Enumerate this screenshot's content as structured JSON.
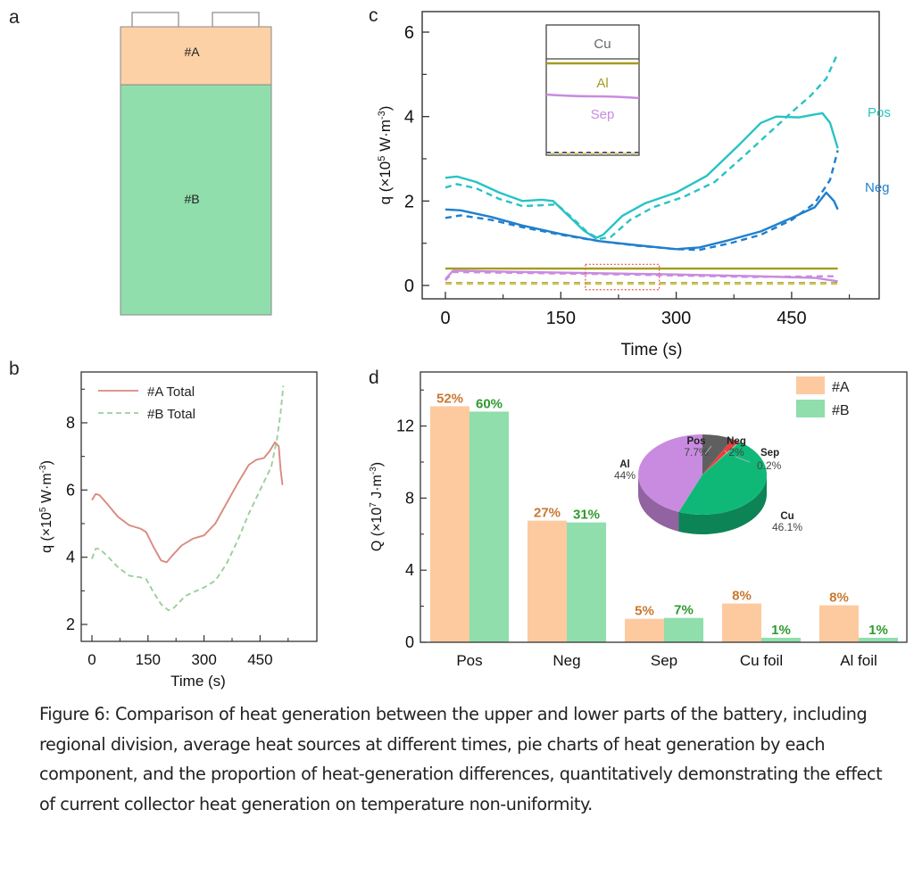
{
  "figure": {
    "caption": "Figure 6: Comparison of heat generation between the upper and lower parts of the battery, including regional division, average heat sources at different times, pie charts of heat generation by each component, and the proportion of heat-generation differences, quantitatively demonstrating the effect of current collector heat generation on temperature non-uniformity."
  },
  "panels": {
    "a": {
      "label": "a",
      "regions": [
        {
          "name": "#A",
          "color": "#fdd1a6"
        },
        {
          "name": "#B",
          "color": "#8fdeac"
        }
      ]
    }
  },
  "chart_data": [
    {
      "panel": "c",
      "type": "line",
      "title": "",
      "xlabel": "Time (s)",
      "ylabel": "q (×10⁵ W·m⁻³)",
      "ylabel_parts": {
        "pre": "q (×10",
        "sup1": "5",
        "mid": " W·m",
        "sup2": "-3",
        "post": ")"
      },
      "xlim": [
        -20,
        565
      ],
      "ylim": [
        -0.3,
        6.6
      ],
      "xticks": [
        0,
        150,
        300,
        450
      ],
      "yticks": [
        0,
        2,
        4,
        6
      ],
      "line_labels": [
        {
          "text": "Pos",
          "color": "#27c3c5"
        },
        {
          "text": "Neg",
          "color": "#1f7fce"
        }
      ],
      "series": [
        {
          "name": "Pos #A",
          "style": "solid",
          "color": "#27c3c5",
          "x": [
            0,
            15,
            40,
            70,
            100,
            125,
            140,
            160,
            180,
            195,
            205,
            230,
            260,
            300,
            340,
            380,
            410,
            430,
            460,
            480,
            490,
            500,
            510
          ],
          "y": [
            2.55,
            2.58,
            2.45,
            2.2,
            2.0,
            2.03,
            2.0,
            1.65,
            1.3,
            1.12,
            1.2,
            1.65,
            1.95,
            2.2,
            2.6,
            3.3,
            3.85,
            4.0,
            3.98,
            4.05,
            4.08,
            3.85,
            3.25
          ]
        },
        {
          "name": "Pos #B",
          "style": "dashed",
          "color": "#27c3c5",
          "x": [
            0,
            15,
            40,
            70,
            100,
            125,
            145,
            165,
            185,
            200,
            215,
            240,
            270,
            310,
            350,
            390,
            420,
            450,
            475,
            495,
            510
          ],
          "y": [
            2.32,
            2.4,
            2.3,
            2.05,
            1.88,
            1.9,
            1.92,
            1.6,
            1.25,
            1.1,
            1.15,
            1.55,
            1.85,
            2.1,
            2.45,
            3.1,
            3.6,
            4.1,
            4.5,
            4.9,
            5.5
          ]
        },
        {
          "name": "Neg #A",
          "style": "solid",
          "color": "#1f7fce",
          "x": [
            0,
            20,
            60,
            100,
            150,
            200,
            250,
            300,
            330,
            370,
            410,
            450,
            480,
            495,
            505,
            510
          ],
          "y": [
            1.8,
            1.78,
            1.62,
            1.42,
            1.22,
            1.05,
            0.95,
            0.86,
            0.9,
            1.08,
            1.28,
            1.6,
            1.85,
            2.2,
            2.0,
            1.8
          ]
        },
        {
          "name": "Neg #B",
          "style": "dashed",
          "color": "#1f7fce",
          "x": [
            0,
            20,
            60,
            100,
            150,
            200,
            250,
            300,
            330,
            370,
            410,
            450,
            480,
            500,
            510
          ],
          "y": [
            1.6,
            1.66,
            1.55,
            1.38,
            1.2,
            1.05,
            0.94,
            0.86,
            0.84,
            1.0,
            1.2,
            1.55,
            1.95,
            2.5,
            3.2
          ]
        },
        {
          "name": "Al #A",
          "style": "solid",
          "color": "#a59b1e",
          "x": [
            0,
            510
          ],
          "y": [
            0.4,
            0.4
          ]
        },
        {
          "name": "Sep #A",
          "style": "solid",
          "color": "#c98be0",
          "x": [
            0,
            10,
            100,
            200,
            300,
            400,
            480,
            510
          ],
          "y": [
            0.15,
            0.35,
            0.32,
            0.29,
            0.26,
            0.22,
            0.18,
            0.1
          ]
        },
        {
          "name": "Sep #B",
          "style": "dashed",
          "color": "#c98be0",
          "x": [
            0,
            10,
            200,
            400,
            510
          ],
          "y": [
            0.12,
            0.32,
            0.27,
            0.2,
            0.22
          ]
        },
        {
          "name": "Cu #A",
          "style": "dashed",
          "color": "#5b5b6b",
          "x": [
            0,
            510
          ],
          "y": [
            0.05,
            0.05
          ]
        },
        {
          "name": "Al #B",
          "style": "dashed",
          "color": "#cfc832",
          "x": [
            0,
            510
          ],
          "y": [
            0.04,
            0.04
          ]
        }
      ],
      "highlight_box": {
        "x": [
          182,
          278
        ],
        "y": [
          -0.1,
          0.5
        ],
        "color": "#e05a4a"
      },
      "inset": {
        "labels": [
          {
            "text": "Cu",
            "color": "#666666"
          },
          {
            "text": "Al",
            "color": "#a59b1e"
          },
          {
            "text": "Sep",
            "color": "#c98be0"
          }
        ]
      }
    },
    {
      "panel": "b",
      "type": "line",
      "title": "",
      "xlabel": "Time (s)",
      "ylabel": "q (×10⁵ W·m⁻³)",
      "ylabel_parts": {
        "pre": "q (×10",
        "sup1": "5",
        "mid": " W·m",
        "sup2": "-3",
        "post": ")"
      },
      "xlim": [
        -30,
        600
      ],
      "ylim": [
        1.5,
        9.5
      ],
      "xticks": [
        0,
        150,
        300,
        450
      ],
      "yticks": [
        2,
        4,
        6,
        8
      ],
      "legend": {
        "placement": "top-left"
      },
      "series": [
        {
          "name": "#A Total",
          "style": "solid",
          "color": "#d98a80",
          "x": [
            0,
            10,
            20,
            40,
            70,
            100,
            130,
            145,
            165,
            185,
            200,
            215,
            240,
            270,
            300,
            330,
            360,
            390,
            420,
            440,
            460,
            475,
            490,
            500,
            505,
            510
          ],
          "y": [
            5.7,
            5.88,
            5.85,
            5.6,
            5.2,
            4.95,
            4.85,
            4.75,
            4.3,
            3.9,
            3.85,
            4.05,
            4.35,
            4.55,
            4.65,
            5.0,
            5.6,
            6.2,
            6.75,
            6.9,
            6.95,
            7.15,
            7.42,
            7.3,
            6.6,
            6.15
          ]
        },
        {
          "name": "#B Total",
          "style": "dashed",
          "color": "#9bcf9b",
          "x": [
            0,
            10,
            20,
            40,
            70,
            100,
            130,
            145,
            165,
            185,
            205,
            220,
            250,
            280,
            300,
            330,
            360,
            390,
            420,
            450,
            480,
            495,
            505,
            512
          ],
          "y": [
            3.95,
            4.25,
            4.25,
            4.05,
            3.7,
            3.45,
            3.4,
            3.35,
            2.95,
            2.6,
            2.42,
            2.5,
            2.85,
            3.0,
            3.1,
            3.3,
            3.8,
            4.5,
            5.3,
            6.0,
            6.7,
            7.5,
            8.3,
            9.1
          ]
        }
      ]
    },
    {
      "panel": "d",
      "type": "bar",
      "title": "",
      "xlabel": "",
      "ylabel": "Q (×10⁷ J·m⁻³)",
      "ylabel_parts": {
        "pre": "Q (×10",
        "sup1": "7",
        "mid": " J·m",
        "sup2": "-3",
        "post": ")"
      },
      "ylim": [
        0,
        15
      ],
      "yticks": [
        0,
        4,
        8,
        12
      ],
      "categories": [
        "Pos",
        "Neg",
        "Sep",
        "Cu foil",
        "Al foil"
      ],
      "legend": {
        "placement": "top-right"
      },
      "series": [
        {
          "name": "#A",
          "color": "#fdcaa0",
          "label_color": "#c8782f",
          "values": [
            13.1,
            6.75,
            1.3,
            2.15,
            2.05
          ],
          "labels": [
            "52%",
            "27%",
            "5%",
            "8%",
            "8%"
          ]
        },
        {
          "name": "#B",
          "color": "#8fdeac",
          "label_color": "#2f9a2f",
          "values": [
            12.8,
            6.65,
            1.35,
            0.25,
            0.25
          ],
          "labels": [
            "60%",
            "31%",
            "7%",
            "1%",
            "1%"
          ]
        }
      ],
      "inset_pie": {
        "type": "pie",
        "slices": [
          {
            "name": "Pos",
            "value": 7.7,
            "label": "7.7%",
            "color": "#5f5f5f"
          },
          {
            "name": "Neg",
            "value": 2.0,
            "label": "2%",
            "color": "#e8413f"
          },
          {
            "name": "Sep",
            "value": 0.2,
            "label": "0.2%",
            "color": "#b0e6c8"
          },
          {
            "name": "Cu",
            "value": 46.1,
            "label": "46.1%",
            "color": "#10b877"
          },
          {
            "name": "Al",
            "value": 44.0,
            "label": "44%",
            "color": "#c98be0"
          }
        ]
      }
    }
  ]
}
